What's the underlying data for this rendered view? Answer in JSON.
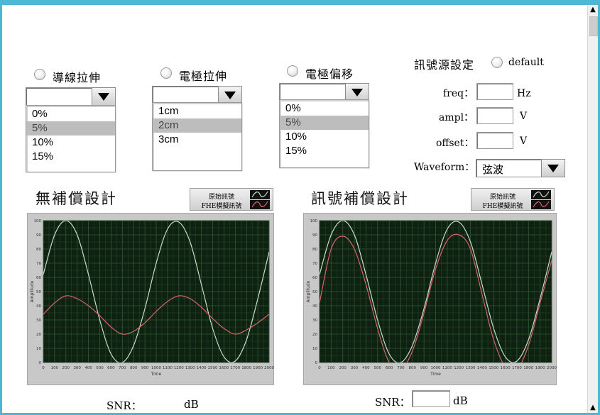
{
  "options": {
    "wire_stretch": {
      "label": "導線拉伸",
      "items": [
        "0%",
        "5%",
        "10%",
        "15%"
      ],
      "selected_index": 1
    },
    "electrode_stretch": {
      "label": "電極拉伸",
      "items": [
        "1cm",
        "2cm",
        "3cm"
      ],
      "selected_index": 1
    },
    "electrode_offset": {
      "label": "電極偏移",
      "items": [
        "0%",
        "5%",
        "10%",
        "15%"
      ],
      "selected_index": 1
    }
  },
  "signal_source": {
    "label": "訊號源設定",
    "default_label": "default",
    "freq": {
      "label": "freq：",
      "unit": "Hz",
      "value": ""
    },
    "ampl": {
      "label": "ampl：",
      "unit": "V",
      "value": ""
    },
    "offset": {
      "label": "offset：",
      "unit": "V",
      "value": ""
    },
    "waveform": {
      "label": "Waveform：",
      "value": "弦波"
    }
  },
  "left_panel": {
    "title": "無補償設計",
    "legend": [
      "原始訊號",
      "FHE模擬訊號"
    ],
    "snr_label": "SNR：",
    "snr_value": "",
    "snr_unit": "dB"
  },
  "right_panel": {
    "title": "訊號補償設計",
    "legend": [
      "原始訊號",
      "FHE模擬訊號"
    ],
    "snr_label": "SNR：",
    "snr_value": "",
    "snr_unit": "dB"
  },
  "colors": {
    "plot_bg": "#0f2211",
    "grid": "#2f5a34",
    "original": "#c9dcc9",
    "fhe": "#d8646c",
    "frame": "#4fb7d4"
  },
  "chart_data": [
    {
      "type": "line",
      "title": "",
      "xlabel": "Time",
      "ylabel": "Amplitude",
      "xlim": [
        0,
        2000
      ],
      "ylim": [
        0,
        100
      ],
      "x_ticks": [
        0,
        100,
        200,
        300,
        400,
        500,
        600,
        700,
        800,
        900,
        1000,
        1100,
        1200,
        1300,
        1400,
        1500,
        1600,
        1700,
        1800,
        1900,
        2000
      ],
      "y_ticks": [
        0,
        10,
        20,
        30,
        40,
        50,
        60,
        70,
        80,
        90,
        100
      ],
      "series": [
        {
          "name": "原始訊號",
          "color": "#c9dcc9",
          "x": [
            0,
            100,
            200,
            300,
            400,
            500,
            600,
            700,
            800,
            900,
            1000,
            1100,
            1200,
            1300,
            1400,
            1500,
            1600,
            1700,
            1800,
            1900,
            2000
          ],
          "y": [
            62,
            90,
            100,
            90,
            62,
            30,
            6,
            0,
            12,
            38,
            70,
            94,
            99,
            85,
            55,
            24,
            4,
            1,
            16,
            45,
            78
          ]
        },
        {
          "name": "FHE模擬訊號",
          "color": "#d8646c",
          "x": [
            0,
            100,
            200,
            300,
            400,
            500,
            600,
            700,
            800,
            900,
            1000,
            1100,
            1200,
            1300,
            1400,
            1500,
            1600,
            1700,
            1800,
            1900,
            2000
          ],
          "y": [
            34,
            42,
            47,
            45,
            40,
            33,
            25,
            20,
            22,
            28,
            36,
            43,
            47,
            45,
            39,
            31,
            24,
            20,
            23,
            28,
            34
          ]
        }
      ]
    },
    {
      "type": "line",
      "title": "",
      "xlabel": "Time",
      "ylabel": "Amplitude",
      "xlim": [
        0,
        2000
      ],
      "ylim": [
        0,
        100
      ],
      "x_ticks": [
        0,
        100,
        200,
        300,
        400,
        500,
        600,
        700,
        800,
        900,
        1000,
        1100,
        1200,
        1300,
        1400,
        1500,
        1600,
        1700,
        1800,
        1900,
        2000
      ],
      "y_ticks": [
        0,
        10,
        20,
        30,
        40,
        50,
        60,
        70,
        80,
        90,
        100
      ],
      "series": [
        {
          "name": "原始訊號",
          "color": "#c9dcc9",
          "x": [
            0,
            100,
            200,
            300,
            400,
            500,
            600,
            700,
            800,
            900,
            1000,
            1100,
            1200,
            1300,
            1400,
            1500,
            1600,
            1700,
            1800,
            1900,
            2000
          ],
          "y": [
            62,
            90,
            100,
            90,
            62,
            30,
            6,
            0,
            12,
            38,
            70,
            94,
            99,
            85,
            55,
            24,
            4,
            1,
            16,
            45,
            78
          ]
        },
        {
          "name": "FHE模擬訊號",
          "color": "#d8646c",
          "x": [
            0,
            100,
            200,
            300,
            400,
            500,
            600,
            700,
            800,
            900,
            1000,
            1100,
            1200,
            1300,
            1400,
            1500,
            1600,
            1700,
            1800,
            1900,
            2000
          ],
          "y": [
            42,
            80,
            89,
            80,
            55,
            24,
            0,
            -5,
            8,
            35,
            66,
            86,
            90,
            80,
            48,
            16,
            -3,
            -5,
            12,
            42,
            72
          ]
        }
      ]
    }
  ]
}
